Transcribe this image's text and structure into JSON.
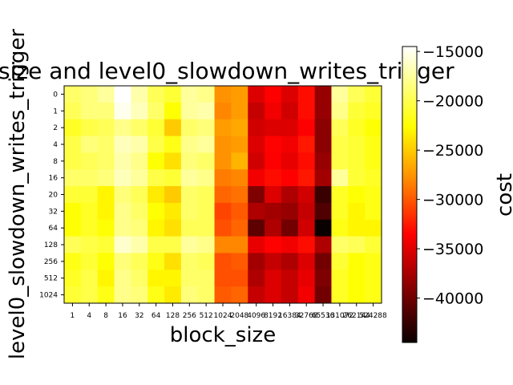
{
  "chart_data": {
    "type": "heatmap",
    "title": "size and level0_slowdown_writes_trigger",
    "xlabel": "block_size",
    "ylabel": "level0_slowdown_writes_trigger",
    "x_categories": [
      "1",
      "4",
      "8",
      "16",
      "32",
      "64",
      "128",
      "256",
      "512",
      "1024",
      "2048",
      "4096",
      "8192",
      "16384",
      "32768",
      "65536",
      "131072",
      "262144",
      "524288"
    ],
    "y_categories": [
      "0",
      "1",
      "2",
      "4",
      "8",
      "16",
      "20",
      "32",
      "64",
      "128",
      "256",
      "512",
      "1024"
    ],
    "colorbar": {
      "label": "cost",
      "ticks": [
        -15000,
        -20000,
        -25000,
        -30000,
        -35000,
        -40000
      ],
      "range": [
        -44500,
        -14500
      ],
      "colormap": "hot"
    },
    "values": [
      [
        -19000,
        -18500,
        -17500,
        -14500,
        -17000,
        -19500,
        -20500,
        -17500,
        -18000,
        -27000,
        -26500,
        -35500,
        -34000,
        -35500,
        -33000,
        -38500,
        -17500,
        -19500,
        -20500
      ],
      [
        -19500,
        -18500,
        -18500,
        -15000,
        -16500,
        -19000,
        -22000,
        -17500,
        -17000,
        -27500,
        -26500,
        -36500,
        -34500,
        -36000,
        -33000,
        -38500,
        -18000,
        -20500,
        -21000
      ],
      [
        -21000,
        -20000,
        -19500,
        -18000,
        -19000,
        -20500,
        -24500,
        -19000,
        -18500,
        -26500,
        -26000,
        -36000,
        -35500,
        -35500,
        -34000,
        -39000,
        -19500,
        -21000,
        -22000
      ],
      [
        -20000,
        -18500,
        -19000,
        -16500,
        -17000,
        -20000,
        -21500,
        -18000,
        -17500,
        -27000,
        -26500,
        -35500,
        -33500,
        -34500,
        -32500,
        -39000,
        -20000,
        -20500,
        -21500
      ],
      [
        -20000,
        -19500,
        -19000,
        -17000,
        -18000,
        -22000,
        -23500,
        -18500,
        -19000,
        -27000,
        -25500,
        -36000,
        -34000,
        -35000,
        -33000,
        -38500,
        -20000,
        -20500,
        -21500
      ],
      [
        -19000,
        -19000,
        -18500,
        -16500,
        -17500,
        -20000,
        -20500,
        -17500,
        -18000,
        -28000,
        -27500,
        -34500,
        -33000,
        -34000,
        -32500,
        -38000,
        -17500,
        -20500,
        -21000
      ],
      [
        -20500,
        -20500,
        -22500,
        -18500,
        -19500,
        -23000,
        -24500,
        -19000,
        -19500,
        -29000,
        -28500,
        -39500,
        -35500,
        -37500,
        -36000,
        -42500,
        -21000,
        -22000,
        -21500
      ],
      [
        -22000,
        -21000,
        -22500,
        -18000,
        -19000,
        -22000,
        -23000,
        -19000,
        -19500,
        -30500,
        -29500,
        -37500,
        -38000,
        -38500,
        -36500,
        -41500,
        -21000,
        -22500,
        -21500
      ],
      [
        -22000,
        -21000,
        -22000,
        -18000,
        -18500,
        -22500,
        -23500,
        -19500,
        -19500,
        -30000,
        -29000,
        -41000,
        -37500,
        -40000,
        -36000,
        -44500,
        -21500,
        -22500,
        -22500
      ],
      [
        -19500,
        -20000,
        -20500,
        -16000,
        -17000,
        -20000,
        -20000,
        -17500,
        -18000,
        -27500,
        -27500,
        -35000,
        -33500,
        -34500,
        -33000,
        -37500,
        -19000,
        -19500,
        -20500
      ],
      [
        -21500,
        -20500,
        -22000,
        -18500,
        -19500,
        -21500,
        -23500,
        -19000,
        -19500,
        -30000,
        -29500,
        -38000,
        -36500,
        -37500,
        -35500,
        -40000,
        -20500,
        -22000,
        -21500
      ],
      [
        -21000,
        -20000,
        -22500,
        -18000,
        -19000,
        -22500,
        -22500,
        -19000,
        -19000,
        -30000,
        -30000,
        -37500,
        -35500,
        -36500,
        -35000,
        -39500,
        -21000,
        -22000,
        -21500
      ],
      [
        -20500,
        -20000,
        -21500,
        -18000,
        -18500,
        -21500,
        -23000,
        -18500,
        -19000,
        -29500,
        -29000,
        -36500,
        -35500,
        -36500,
        -34500,
        -40000,
        -21000,
        -22000,
        -21500
      ]
    ]
  }
}
